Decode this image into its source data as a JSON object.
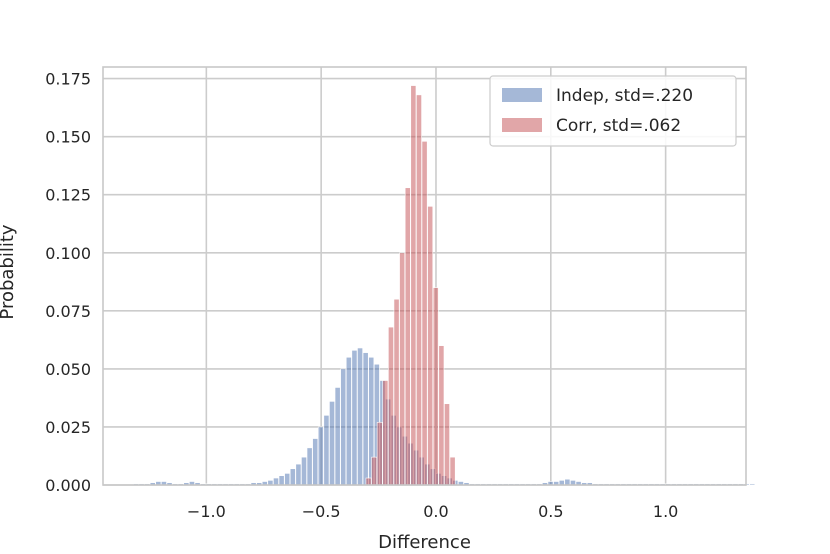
{
  "chart_data": {
    "type": "bar",
    "title": "",
    "xlabel": "Difference",
    "ylabel": "Probability",
    "xlim": [
      -1.45,
      1.35
    ],
    "ylim": [
      0,
      0.18
    ],
    "x_ticks": [
      -1.0,
      -0.5,
      0.0,
      0.5,
      1.0
    ],
    "x_tick_labels": [
      "−1.0",
      "−0.5",
      "0.0",
      "0.5",
      "1.0"
    ],
    "y_ticks": [
      0,
      0.025,
      0.05,
      0.075,
      0.1,
      0.125,
      0.15,
      0.175
    ],
    "y_tick_labels": [
      "0.000",
      "0.025",
      "0.050",
      "0.075",
      "0.100",
      "0.125",
      "0.150",
      "0.175"
    ],
    "grid": true,
    "bin_width": 0.0244,
    "legend_position": "top-right",
    "series": [
      {
        "name": "Indep, std=.220",
        "color": "#4c72b0",
        "opacity": 0.5,
        "x_start": -1.318,
        "values": [
          0.0005,
          0.0005,
          0.0005,
          0.001,
          0.0015,
          0.0015,
          0.001,
          0.0005,
          0.0005,
          0.001,
          0.0015,
          0.001,
          0.0005,
          0.0005,
          0.0005,
          0.0005,
          0.0005,
          0.0005,
          0.0005,
          0.0005,
          0.0005,
          0.001,
          0.001,
          0.0015,
          0.002,
          0.003,
          0.004,
          0.005,
          0.007,
          0.009,
          0.012,
          0.016,
          0.02,
          0.025,
          0.03,
          0.036,
          0.042,
          0.05,
          0.055,
          0.058,
          0.059,
          0.057,
          0.055,
          0.052,
          0.045,
          0.037,
          0.03,
          0.025,
          0.021,
          0.018,
          0.015,
          0.012,
          0.009,
          0.007,
          0.005,
          0.004,
          0.003,
          0.002,
          0.0015,
          0.001,
          0.0005,
          0.0005,
          0.0005,
          0.0005,
          0.0005,
          0.0005,
          0.0005,
          0.0005,
          0.0005,
          0.0005,
          0.0005,
          0.0005,
          0.0005,
          0.001,
          0.0015,
          0.0015,
          0.002,
          0.0025,
          0.002,
          0.0015,
          0.001,
          0.001,
          0.0005,
          0.0005,
          0.0005,
          0.0005,
          0.0005,
          0.0005,
          0.0005,
          0.0005,
          0.0005,
          0.0005,
          0.0005,
          0.0005,
          0.0005,
          0.0005,
          0.0005,
          0.0005,
          0.0005,
          0.0005,
          0.0005,
          0.0005,
          0.0005,
          0.0005,
          0.0005,
          0.0005,
          0.0005,
          0.0005,
          0.0005,
          0.0005,
          0.0005
        ]
      },
      {
        "name": "Corr, std=.062",
        "color": "#c44e52",
        "opacity": 0.5,
        "x_start": -0.305,
        "values": [
          0.003,
          0.012,
          0.027,
          0.045,
          0.068,
          0.08,
          0.1,
          0.128,
          0.172,
          0.168,
          0.148,
          0.12,
          0.085,
          0.06,
          0.035,
          0.012
        ]
      }
    ]
  }
}
